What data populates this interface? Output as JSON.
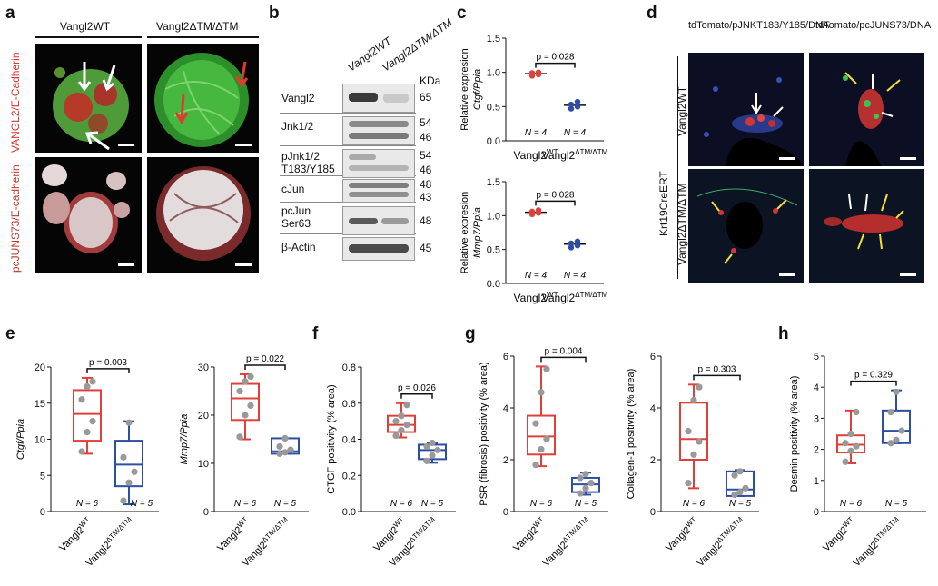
{
  "panel_letters": {
    "a": "a",
    "b": "b",
    "c": "c",
    "d": "d",
    "e": "e",
    "f": "f",
    "g": "g",
    "h": "h"
  },
  "panel_a": {
    "col_labels": [
      "Vangl2WT",
      "Vangl2ΔTM/ΔTM"
    ],
    "row_labels": [
      "VANGL2/E-Cadherin",
      "pcJUNS73/E-cadherin"
    ]
  },
  "panel_b": {
    "col_labels": [
      "Vangl2WT",
      "Vangl2ΔTM/ΔTM"
    ],
    "kda_header": "KDa",
    "rows": [
      {
        "name": "Vangl2",
        "kda": [
          "65"
        ]
      },
      {
        "name": "Jnk1/2",
        "kda": [
          "54",
          "46"
        ]
      },
      {
        "name": "pJnk1/2 T183/Y185",
        "kda": [
          "54",
          "46"
        ]
      },
      {
        "name": "cJun",
        "kda": [
          "48",
          "43"
        ]
      },
      {
        "name": "pcJun Ser63",
        "kda": [
          "48"
        ]
      },
      {
        "name": "β-Actin",
        "kda": [
          "45"
        ]
      }
    ]
  },
  "panel_d": {
    "col_labels": [
      "tdTomato/pJNKT183/Y185/DNA",
      "tdTomato/pcJUNS73/DNA"
    ],
    "row_labels": [
      "Vangl2WT",
      "Vangl2ΔTM/ΔTM"
    ],
    "side_label": "Krt19CreERT"
  },
  "colors": {
    "wt": "#e0403a",
    "mut": "#2c4ea3",
    "dot": "#999999"
  },
  "chart_data": [
    {
      "panel": "c",
      "type": "scatter",
      "ylabel": "Relative expresion Ctgf/Ppia",
      "categories": [
        "Vangl2WT",
        "Vangl2ΔTM/ΔTM"
      ],
      "ylim": [
        0,
        1.5
      ],
      "yticks": [
        "0.0",
        "0.5",
        "1.0",
        "1.5"
      ],
      "series": [
        {
          "name": "Vangl2WT",
          "values": [
            0.95,
            0.97,
            0.99,
            1.0
          ],
          "mean": 0.98,
          "n": "N = 4"
        },
        {
          "name": "Vangl2ΔTM/ΔTM",
          "values": [
            0.47,
            0.5,
            0.53,
            0.57
          ],
          "mean": 0.52,
          "n": "N = 4"
        }
      ],
      "annotation": "p = 0.028"
    },
    {
      "panel": "c",
      "type": "scatter",
      "ylabel": "Relative expresion Mmp7/Ppia",
      "categories": [
        "Vangl2WT",
        "Vangl2ΔTM/ΔTM"
      ],
      "ylim": [
        0,
        1.5
      ],
      "yticks": [
        "0.0",
        "0.5",
        "1.0",
        "1.5"
      ],
      "series": [
        {
          "name": "Vangl2WT",
          "values": [
            1.02,
            1.04,
            1.06,
            1.08
          ],
          "mean": 1.05,
          "n": "N = 4"
        },
        {
          "name": "Vangl2ΔTM/ΔTM",
          "values": [
            0.53,
            0.56,
            0.59,
            0.62
          ],
          "mean": 0.58,
          "n": "N = 4"
        }
      ],
      "annotation": "p = 0.028"
    },
    {
      "panel": "e",
      "type": "box",
      "ylabel": "Ctgf/Ppia",
      "categories": [
        "Vangl2WT",
        "Vangl2ΔTM/ΔTM"
      ],
      "ylim": [
        0,
        20
      ],
      "yticks": [
        "0",
        "5",
        "10",
        "15",
        "20"
      ],
      "series": [
        {
          "name": "Vangl2WT",
          "min": 8,
          "q1": 9.8,
          "median": 13.5,
          "q3": 16.8,
          "max": 18.5,
          "points": [
            8.3,
            11,
            12.5,
            15.5,
            17.3,
            18
          ],
          "n": "N = 6"
        },
        {
          "name": "Vangl2ΔTM/ΔTM",
          "min": 1,
          "q1": 3.5,
          "median": 6.5,
          "q3": 9.8,
          "max": 12.5,
          "points": [
            1.5,
            4,
            5.5,
            7.5,
            12.3
          ],
          "n": "N = 5"
        }
      ],
      "annotation": "p = 0.003"
    },
    {
      "panel": "e",
      "type": "box",
      "ylabel": "Mmp7/Ppia",
      "categories": [
        "Vangl2WT",
        "Vangl2ΔTM/ΔTM"
      ],
      "ylim": [
        0,
        30
      ],
      "yticks": [
        "0",
        "10",
        "20",
        "30"
      ],
      "series": [
        {
          "name": "Vangl2WT",
          "min": 15,
          "q1": 19,
          "median": 23.5,
          "q3": 26.5,
          "max": 28.5,
          "points": [
            15.5,
            20,
            22,
            25,
            27,
            28
          ],
          "n": "N = 6"
        },
        {
          "name": "Vangl2ΔTM/ΔTM",
          "min": 12,
          "q1": 12,
          "median": 12.5,
          "q3": 15.2,
          "max": 15.2,
          "points": [
            12,
            12.3,
            12.8,
            13.5,
            15.2
          ],
          "n": "N = 5"
        }
      ],
      "annotation": "p = 0.022"
    },
    {
      "panel": "f",
      "type": "box",
      "ylabel": "CTGF positivity (% area)",
      "categories": [
        "Vangl2WT",
        "Vangl2ΔTM/ΔTM"
      ],
      "ylim": [
        0,
        0.8
      ],
      "yticks": [
        "0.0",
        "0.2",
        "0.4",
        "0.6",
        "0.8"
      ],
      "series": [
        {
          "name": "Vangl2WT",
          "min": 0.41,
          "q1": 0.44,
          "median": 0.48,
          "q3": 0.53,
          "max": 0.6,
          "points": [
            0.42,
            0.45,
            0.48,
            0.5,
            0.53,
            0.59
          ],
          "n": "N = 6"
        },
        {
          "name": "Vangl2ΔTM/ΔTM",
          "min": 0.27,
          "q1": 0.29,
          "median": 0.34,
          "q3": 0.37,
          "max": 0.38,
          "points": [
            0.28,
            0.31,
            0.34,
            0.36,
            0.38
          ],
          "n": "N = 5"
        }
      ],
      "annotation": "p = 0.026"
    },
    {
      "panel": "g",
      "type": "box",
      "ylabel": "PSR (fibrosis) positivity (% area)",
      "categories": [
        "Vangl2WT",
        "Vangl2ΔTM/ΔTM"
      ],
      "ylim": [
        0,
        6
      ],
      "yticks": [
        "0",
        "2",
        "4",
        "6"
      ],
      "series": [
        {
          "name": "Vangl2WT",
          "min": 1.75,
          "q1": 2.2,
          "median": 2.9,
          "q3": 3.7,
          "max": 5.6,
          "points": [
            1.8,
            2.4,
            2.8,
            3.4,
            4.6,
            5.5
          ],
          "n": "N = 6"
        },
        {
          "name": "Vangl2ΔTM/ΔTM",
          "min": 0.65,
          "q1": 0.75,
          "median": 1.05,
          "q3": 1.3,
          "max": 1.5,
          "points": [
            0.7,
            0.9,
            1.1,
            1.3,
            1.45
          ],
          "n": "N = 5"
        }
      ],
      "annotation": "p = 0.004"
    },
    {
      "panel": "g",
      "type": "box",
      "ylabel": "Collagen-1 positivity (% area)",
      "categories": [
        "Vangl2WT",
        "Vangl2ΔTM/ΔTM"
      ],
      "ylim": [
        0,
        6
      ],
      "yticks": [
        "0",
        "2",
        "4",
        "6"
      ],
      "series": [
        {
          "name": "Vangl2WT",
          "min": 0.9,
          "q1": 2.0,
          "median": 2.8,
          "q3": 4.2,
          "max": 4.9,
          "points": [
            1.1,
            2.2,
            2.7,
            3.1,
            4.3,
            4.8
          ],
          "n": "N = 6"
        },
        {
          "name": "Vangl2ΔTM/ΔTM",
          "min": 0.6,
          "q1": 0.6,
          "median": 0.85,
          "q3": 1.55,
          "max": 1.6,
          "points": [
            0.65,
            0.75,
            0.9,
            1.4,
            1.55
          ],
          "n": "N = 5"
        }
      ],
      "annotation": "p = 0.303"
    },
    {
      "panel": "h",
      "type": "box",
      "ylabel": "Desmin positivity (% area)",
      "categories": [
        "Vangl2WT",
        "Vangl2ΔTM/ΔTM"
      ],
      "ylim": [
        0,
        5
      ],
      "yticks": [
        "0",
        "1",
        "2",
        "3",
        "4",
        "5"
      ],
      "series": [
        {
          "name": "Vangl2WT",
          "min": 1.55,
          "q1": 1.9,
          "median": 2.15,
          "q3": 2.45,
          "max": 3.25,
          "points": [
            1.6,
            1.95,
            2.1,
            2.2,
            2.5,
            3.2
          ],
          "n": "N = 6"
        },
        {
          "name": "Vangl2ΔTM/ΔTM",
          "min": 2.2,
          "q1": 2.2,
          "median": 2.6,
          "q3": 3.25,
          "max": 3.9,
          "points": [
            2.2,
            2.3,
            2.6,
            3.2,
            3.85
          ],
          "n": "N = 5"
        }
      ],
      "annotation": "p = 0.329"
    }
  ]
}
